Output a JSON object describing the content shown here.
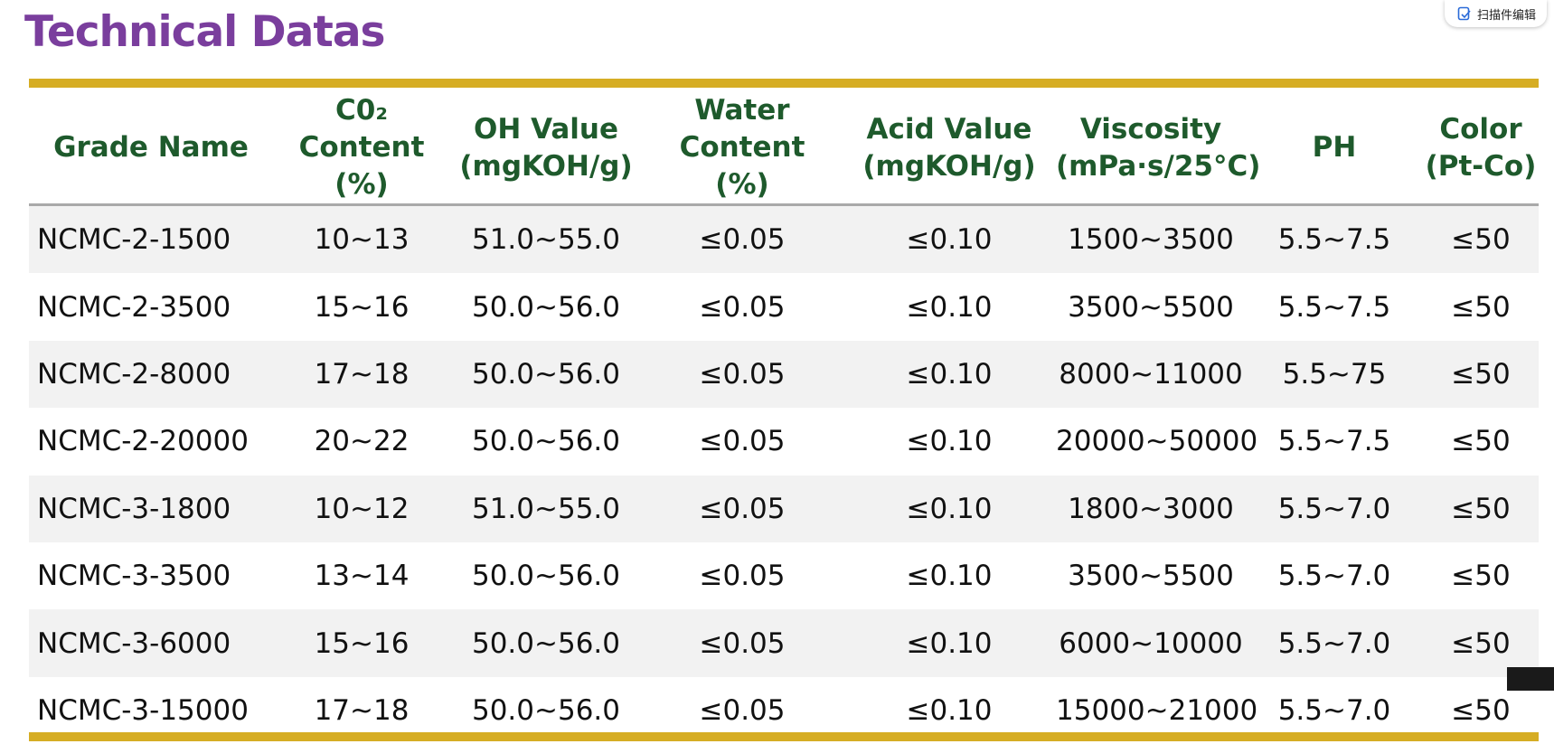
{
  "header": {
    "title": "Technical Datas"
  },
  "widget": {
    "label": "扫描件编辑"
  },
  "table": {
    "header": [
      [
        "Grade Name"
      ],
      [
        "C0₂ Content",
        "(%)"
      ],
      [
        "OH Value",
        "(mgKOH/g)"
      ],
      [
        "Water Content",
        "(%)"
      ],
      [
        "Acid Value",
        "(mgKOH/g)"
      ],
      [
        "Viscosity",
        "(mPa·s/25°C)"
      ],
      [
        "PH"
      ],
      [
        "Color",
        "(Pt-Co)"
      ]
    ],
    "rows": [
      [
        "NCMC-2-1500",
        "10~13",
        "51.0~55.0",
        "≤0.05",
        "≤0.10",
        "1500~3500",
        "5.5~7.5",
        "≤50"
      ],
      [
        "NCMC-2-3500",
        "15~16",
        "50.0~56.0",
        "≤0.05",
        "≤0.10",
        "3500~5500",
        "5.5~7.5",
        "≤50"
      ],
      [
        "NCMC-2-8000",
        "17~18",
        "50.0~56.0",
        "≤0.05",
        "≤0.10",
        "8000~11000",
        "5.5~75",
        "≤50"
      ],
      [
        "NCMC-2-20000",
        "20~22",
        "50.0~56.0",
        "≤0.05",
        "≤0.10",
        "20000~50000",
        "5.5~7.5",
        "≤50"
      ],
      [
        "NCMC-3-1800",
        "10~12",
        "51.0~55.0",
        "≤0.05",
        "≤0.10",
        "1800~3000",
        "5.5~7.0",
        "≤50"
      ],
      [
        "NCMC-3-3500",
        "13~14",
        "50.0~56.0",
        "≤0.05",
        "≤0.10",
        "3500~5500",
        "5.5~7.0",
        "≤50"
      ],
      [
        "NCMC-3-6000",
        "15~16",
        "50.0~56.0",
        "≤0.05",
        "≤0.10",
        "6000~10000",
        "5.5~7.0",
        "≤50"
      ],
      [
        "NCMC-3-15000",
        "17~18",
        "50.0~56.0",
        "≤0.05",
        "≤0.10",
        "15000~21000",
        "5.5~7.0",
        "≤50"
      ]
    ]
  }
}
